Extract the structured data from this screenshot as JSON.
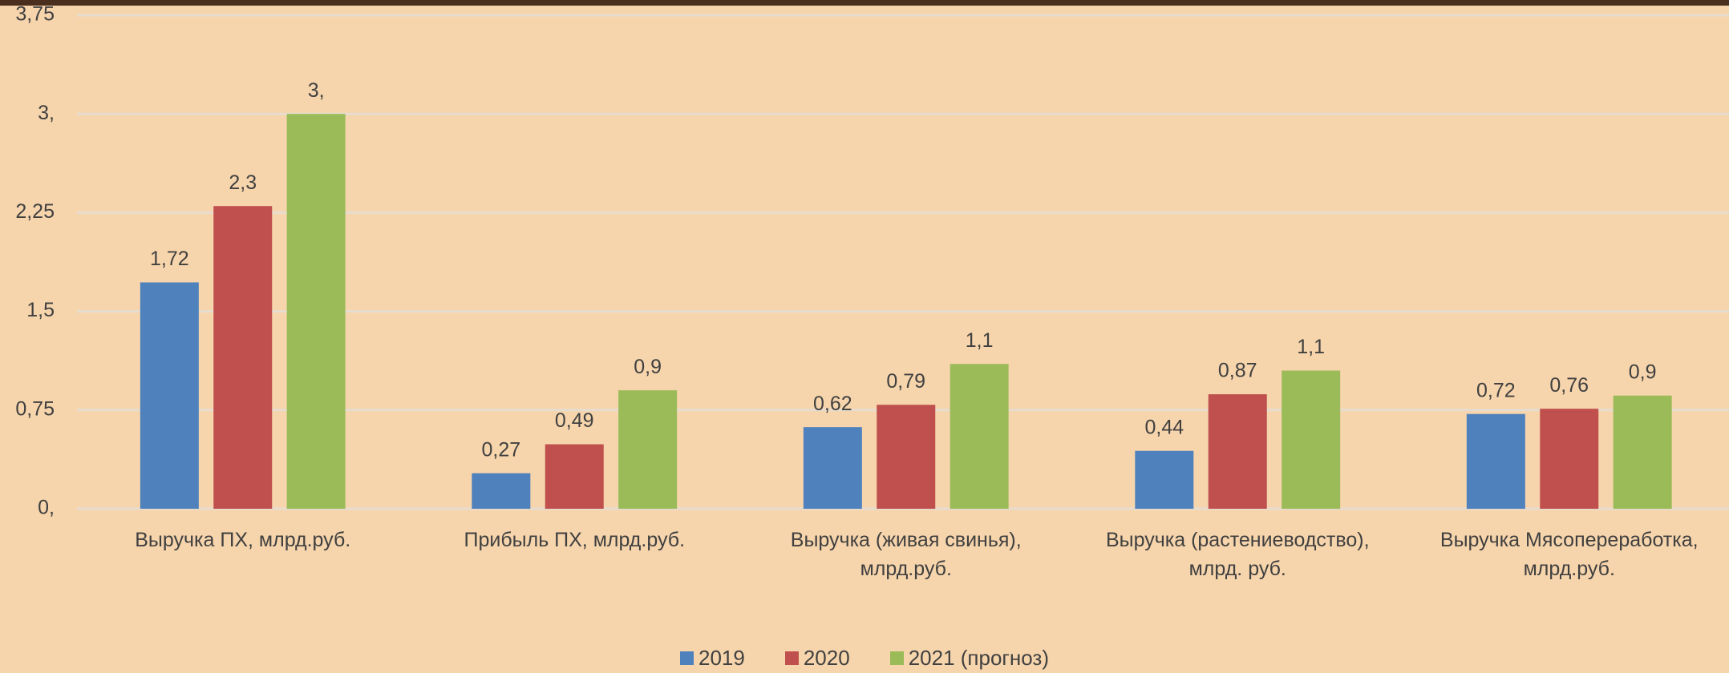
{
  "chart_data": {
    "type": "bar",
    "categories": [
      "Выручка ПХ, млрд.руб.",
      "Прибыль ПХ, млрд.руб.",
      "Выручка (живая свинья), млрд.руб.",
      "Выручка (растениеводство), млрд. руб.",
      "Выручка Мясопереработка, млрд.руб."
    ],
    "series": [
      {
        "name": "2019",
        "color": "#4f81bd",
        "values": [
          1.72,
          0.27,
          0.62,
          0.44,
          0.72
        ],
        "value_labels": [
          "1,72",
          "0,27",
          "0,62",
          "0,44",
          "0,72"
        ]
      },
      {
        "name": "2020",
        "color": "#c0504d",
        "values": [
          2.3,
          0.49,
          0.79,
          0.87,
          0.76
        ],
        "value_labels": [
          "2,3",
          "0,49",
          "0,79",
          "0,87",
          "0,76"
        ]
      },
      {
        "name": "2021 (прогноз)",
        "color": "#9bbb59",
        "values": [
          3,
          0.9,
          1.1,
          1.05,
          0.86
        ],
        "value_labels": [
          "3,",
          "0,9",
          "1,1",
          "1,1",
          "0,9"
        ]
      }
    ],
    "ylim": [
      0,
      3.75
    ],
    "yticks": [
      {
        "value": 0,
        "label": "0,"
      },
      {
        "value": 0.75,
        "label": "0,75"
      },
      {
        "value": 1.5,
        "label": "1,5"
      },
      {
        "value": 2.25,
        "label": "2,25"
      },
      {
        "value": 3,
        "label": "3,"
      },
      {
        "value": 3.75,
        "label": "3,75"
      }
    ],
    "grid": true,
    "legend": "bottom"
  }
}
